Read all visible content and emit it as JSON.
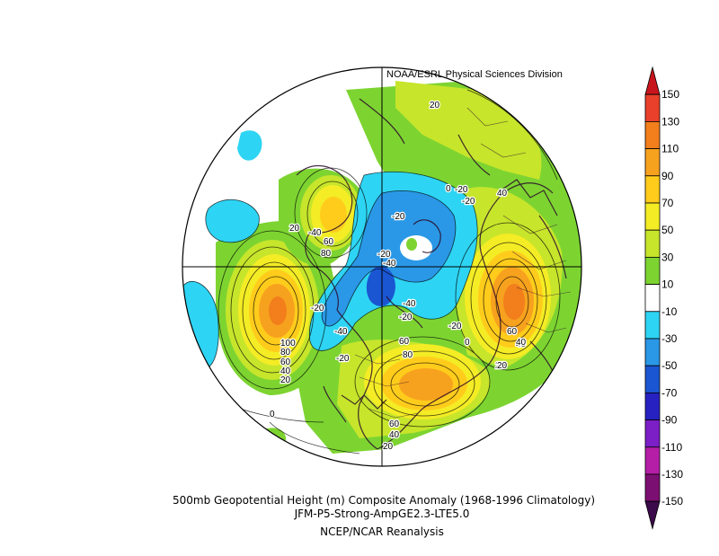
{
  "map": {
    "credit": "NOAA/ESRL Physical Sciences Division",
    "projection": "north-polar-stereographic",
    "contour_labels": [
      {
        "text": "20"
      },
      {
        "text": "20"
      },
      {
        "text": "-40"
      },
      {
        "text": "-20"
      },
      {
        "text": "0"
      },
      {
        "text": "-20"
      },
      {
        "text": "-20"
      },
      {
        "text": "-40"
      },
      {
        "text": "-20"
      },
      {
        "text": "40"
      },
      {
        "text": "60"
      },
      {
        "text": "80"
      },
      {
        "text": "-20"
      },
      {
        "text": "-40"
      },
      {
        "text": "-20"
      },
      {
        "text": "-40"
      },
      {
        "text": "-20"
      },
      {
        "text": "20"
      },
      {
        "text": "100"
      },
      {
        "text": "80"
      },
      {
        "text": "60"
      },
      {
        "text": "40"
      },
      {
        "text": "20"
      },
      {
        "text": "0"
      },
      {
        "text": "60"
      },
      {
        "text": "80"
      },
      {
        "text": "60"
      },
      {
        "text": "40"
      },
      {
        "text": "20"
      },
      {
        "text": "40"
      },
      {
        "text": "60"
      },
      {
        "text": "40"
      },
      {
        "text": "0"
      },
      {
        "text": "20"
      },
      {
        "text": "-20"
      }
    ]
  },
  "colorbar": {
    "levels": [
      "150",
      "130",
      "110",
      "90",
      "70",
      "50",
      "30",
      "10",
      "-10",
      "-30",
      "-50",
      "-70",
      "-90",
      "-110",
      "-130",
      "-150"
    ],
    "colors": [
      "#c8151c",
      "#e8402a",
      "#f27e1c",
      "#f7a21e",
      "#ffcc1c",
      "#f4ec25",
      "#c6e52b",
      "#7dd431",
      "#ffffff",
      "#2ed4f3",
      "#2a98e6",
      "#1a56d1",
      "#2821c1",
      "#7c1fc7",
      "#b51ea7",
      "#7c0f72",
      "#3b0a4a"
    ],
    "arrows": true
  },
  "captions": {
    "line1": "500mb Geopotential Height (m) Composite Anomaly (1968-1996 Climatology)",
    "line2": "JFM-P5-Strong-AmpGE2.3-LTE5.0",
    "line3": "NCEP/NCAR Reanalysis"
  }
}
